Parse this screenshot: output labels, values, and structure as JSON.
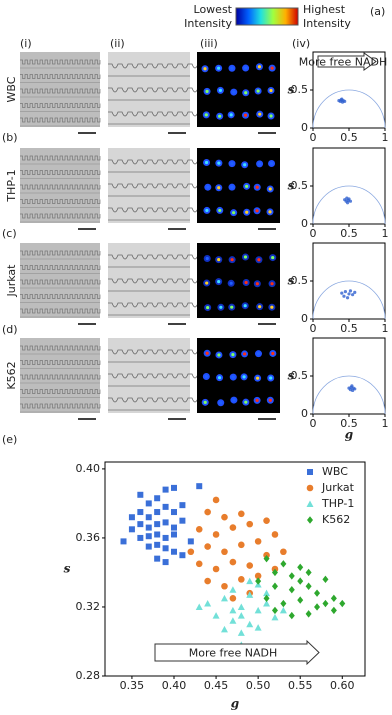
{
  "figure": {
    "panels": [
      "(a)",
      "(b)",
      "(c)",
      "(d)",
      "(e)"
    ],
    "colorbar_low": [
      "Lowest",
      "Intensity"
    ],
    "colorbar_high": [
      "Highest",
      "Intensity"
    ],
    "columns": [
      "(i)",
      "(ii)",
      "(iii)",
      "(iv)"
    ],
    "rows": [
      "WBC",
      "THP-1",
      "Jurkat",
      "K562"
    ]
  },
  "chart_data": [
    {
      "type": "scatter",
      "y_label": "s",
      "annotation": "More free NADH",
      "xlim": [
        0,
        1
      ],
      "ylim": [
        0,
        1
      ],
      "xticks": [
        0,
        0.5,
        1
      ],
      "yticks": [
        0,
        0.5
      ],
      "color": "#3060d0",
      "x": [
        0.36,
        0.39,
        0.42,
        0.38,
        0.41,
        0.44,
        0.4
      ],
      "values": [
        0.36,
        0.37,
        0.36,
        0.35,
        0.34,
        0.35,
        0.38
      ]
    },
    {
      "type": "scatter",
      "y_label": "s",
      "xlim": [
        0,
        1
      ],
      "ylim": [
        0,
        1
      ],
      "xticks": [
        0,
        0.5,
        1
      ],
      "yticks": [
        0,
        0.5
      ],
      "color": "#3060d0",
      "x": [
        0.44,
        0.47,
        0.5,
        0.46,
        0.49,
        0.52,
        0.48
      ],
      "values": [
        0.32,
        0.34,
        0.33,
        0.3,
        0.31,
        0.3,
        0.28
      ]
    },
    {
      "type": "scatter",
      "y_label": "s",
      "xlim": [
        0,
        1
      ],
      "ylim": [
        0,
        1
      ],
      "xticks": [
        0,
        0.5,
        1
      ],
      "yticks": [
        0,
        0.5
      ],
      "color": "#3060d0",
      "x": [
        0.4,
        0.45,
        0.5,
        0.55,
        0.43,
        0.52,
        0.48,
        0.58
      ],
      "values": [
        0.34,
        0.36,
        0.33,
        0.32,
        0.3,
        0.37,
        0.28,
        0.35
      ]
    },
    {
      "type": "scatter",
      "y_label": "s",
      "x_label": "g",
      "xlim": [
        0,
        1
      ],
      "ylim": [
        0,
        1
      ],
      "xticks": [
        0,
        0.5,
        1
      ],
      "yticks": [
        0,
        0.5
      ],
      "color": "#3060d0",
      "x": [
        0.5,
        0.53,
        0.56,
        0.52,
        0.55,
        0.58,
        0.54
      ],
      "values": [
        0.34,
        0.35,
        0.34,
        0.32,
        0.31,
        0.33,
        0.37
      ]
    },
    {
      "type": "scatter",
      "x_label": "g",
      "y_label": "s",
      "annotation": "More free NADH",
      "xlim": [
        0.318,
        0.627
      ],
      "ylim": [
        0.28,
        0.404
      ],
      "xticks": [
        0.35,
        {
          "value": 0.4,
          "label": "0.40"
        },
        0.45,
        {
          "value": 0.5,
          "label": "0.50"
        },
        0.55,
        {
          "value": 0.6,
          "label": "0.60"
        }
      ],
      "yticks": [
        0.28,
        0.32,
        0.36,
        {
          "value": 0.4,
          "label": "0.40"
        }
      ],
      "series": [
        {
          "name": "WBC",
          "color": "#3a6fd8",
          "marker": "square",
          "x": [
            0.36,
            0.37,
            0.38,
            0.39,
            0.4,
            0.43,
            0.35,
            0.36,
            0.37,
            0.38,
            0.39,
            0.4,
            0.41,
            0.35,
            0.36,
            0.37,
            0.38,
            0.39,
            0.4,
            0.41,
            0.34,
            0.36,
            0.37,
            0.38,
            0.39,
            0.4,
            0.37,
            0.38,
            0.39,
            0.4,
            0.38,
            0.39,
            0.41,
            0.42
          ],
          "values": [
            0.385,
            0.38,
            0.383,
            0.388,
            0.389,
            0.39,
            0.372,
            0.375,
            0.372,
            0.375,
            0.378,
            0.375,
            0.379,
            0.365,
            0.368,
            0.366,
            0.368,
            0.369,
            0.366,
            0.37,
            0.358,
            0.36,
            0.361,
            0.362,
            0.36,
            0.362,
            0.355,
            0.356,
            0.354,
            0.352,
            0.348,
            0.346,
            0.35,
            0.358
          ]
        },
        {
          "name": "Jurkat",
          "color": "#e87d2c",
          "marker": "circle",
          "x": [
            0.45,
            0.44,
            0.46,
            0.48,
            0.43,
            0.45,
            0.47,
            0.49,
            0.51,
            0.44,
            0.46,
            0.48,
            0.5,
            0.52,
            0.43,
            0.45,
            0.47,
            0.49,
            0.51,
            0.44,
            0.46,
            0.48,
            0.5,
            0.47,
            0.49,
            0.52,
            0.42,
            0.53
          ],
          "values": [
            0.382,
            0.375,
            0.372,
            0.374,
            0.365,
            0.362,
            0.366,
            0.368,
            0.37,
            0.355,
            0.352,
            0.356,
            0.358,
            0.362,
            0.345,
            0.342,
            0.346,
            0.344,
            0.35,
            0.335,
            0.332,
            0.336,
            0.338,
            0.325,
            0.328,
            0.342,
            0.352,
            0.352
          ]
        },
        {
          "name": "THP-1",
          "color": "#72e0d8",
          "marker": "triangle",
          "x": [
            0.44,
            0.46,
            0.47,
            0.48,
            0.49,
            0.5,
            0.45,
            0.47,
            0.48,
            0.49,
            0.5,
            0.51,
            0.46,
            0.48,
            0.5,
            0.52,
            0.47,
            0.49,
            0.51,
            0.53,
            0.43,
            0.48
          ],
          "values": [
            0.322,
            0.325,
            0.33,
            0.32,
            0.327,
            0.333,
            0.315,
            0.312,
            0.315,
            0.31,
            0.318,
            0.322,
            0.307,
            0.305,
            0.308,
            0.314,
            0.318,
            0.335,
            0.328,
            0.318,
            0.32,
            0.298
          ]
        },
        {
          "name": "K562",
          "color": "#2ea82e",
          "marker": "diamond",
          "x": [
            0.51,
            0.53,
            0.55,
            0.52,
            0.54,
            0.56,
            0.58,
            0.5,
            0.52,
            0.54,
            0.56,
            0.57,
            0.59,
            0.51,
            0.53,
            0.55,
            0.57,
            0.59,
            0.52,
            0.54,
            0.56,
            0.58,
            0.6,
            0.55
          ],
          "values": [
            0.348,
            0.345,
            0.343,
            0.34,
            0.338,
            0.34,
            0.336,
            0.335,
            0.332,
            0.33,
            0.332,
            0.328,
            0.325,
            0.325,
            0.322,
            0.324,
            0.32,
            0.318,
            0.318,
            0.315,
            0.316,
            0.322,
            0.322,
            0.335
          ]
        }
      ]
    }
  ]
}
